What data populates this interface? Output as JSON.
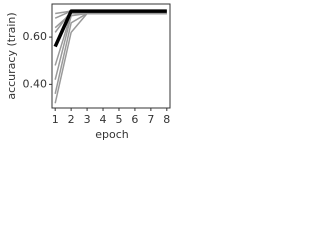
{
  "chart_data": {
    "type": "line",
    "x_label": "epoch",
    "y_label": "accuracy (train)",
    "x": [
      1,
      2,
      3,
      4,
      5,
      6,
      7,
      8
    ],
    "xlim": [
      0.8,
      8.2
    ],
    "xticks": [
      1,
      2,
      3,
      4,
      5,
      6,
      7,
      8
    ],
    "ylim": [
      0.3,
      0.74
    ],
    "yticks": [
      {
        "value": 0.4,
        "label": "0.40"
      },
      {
        "value": 0.6,
        "label": "0.60"
      }
    ],
    "grid": false,
    "series": [
      {
        "color": "#9a9a9a",
        "linewidth": 1.5,
        "values": [
          0.32,
          0.62,
          0.7,
          0.7,
          0.7,
          0.7,
          0.7,
          0.7
        ]
      },
      {
        "color": "#9a9a9a",
        "linewidth": 1.5,
        "values": [
          0.36,
          0.66,
          0.7,
          0.7,
          0.7,
          0.7,
          0.7,
          0.7
        ]
      },
      {
        "color": "#9a9a9a",
        "linewidth": 1.5,
        "values": [
          0.42,
          0.69,
          0.7,
          0.7,
          0.7,
          0.7,
          0.7,
          0.7
        ]
      },
      {
        "color": "#9a9a9a",
        "linewidth": 1.5,
        "values": [
          0.48,
          0.7,
          0.7,
          0.7,
          0.7,
          0.7,
          0.7,
          0.7
        ]
      },
      {
        "color": "#9a9a9a",
        "linewidth": 1.5,
        "values": [
          0.62,
          0.71,
          0.71,
          0.71,
          0.71,
          0.71,
          0.71,
          0.71
        ]
      },
      {
        "color": "#9a9a9a",
        "linewidth": 1.5,
        "values": [
          0.64,
          0.7,
          0.7,
          0.7,
          0.7,
          0.7,
          0.7,
          0.7
        ]
      },
      {
        "color": "#9a9a9a",
        "linewidth": 1.5,
        "values": [
          0.68,
          0.71,
          0.71,
          0.71,
          0.71,
          0.71,
          0.71,
          0.71
        ]
      },
      {
        "color": "#9a9a9a",
        "linewidth": 1.5,
        "values": [
          0.7,
          0.71,
          0.71,
          0.71,
          0.71,
          0.71,
          0.71,
          0.71
        ]
      },
      {
        "color": "#000000",
        "linewidth": 3.5,
        "values": [
          0.56,
          0.71,
          0.71,
          0.71,
          0.71,
          0.71,
          0.71,
          0.71
        ]
      }
    ]
  }
}
